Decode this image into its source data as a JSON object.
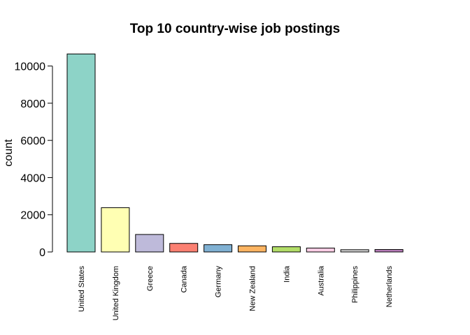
{
  "chart_data": {
    "type": "bar",
    "title": "Top 10 country-wise job postings",
    "xlabel": "",
    "ylabel": "count",
    "ylim": [
      0,
      10700
    ],
    "yticks": [
      0,
      2000,
      4000,
      6000,
      8000,
      10000
    ],
    "grid": false,
    "categories": [
      "United States",
      "United Kingdom",
      "Greece",
      "Canada",
      "Germany",
      "New Zealand",
      "India",
      "Australia",
      "Philippines",
      "Netherlands"
    ],
    "values": [
      10650,
      2380,
      940,
      460,
      390,
      330,
      280,
      210,
      120,
      130
    ],
    "colors": [
      "#8DD3C7",
      "#FFFFB3",
      "#BEBADA",
      "#FB8072",
      "#80B1D3",
      "#FDB462",
      "#B3DE69",
      "#FCCDE5",
      "#D9D9D9",
      "#BC80BD"
    ]
  }
}
